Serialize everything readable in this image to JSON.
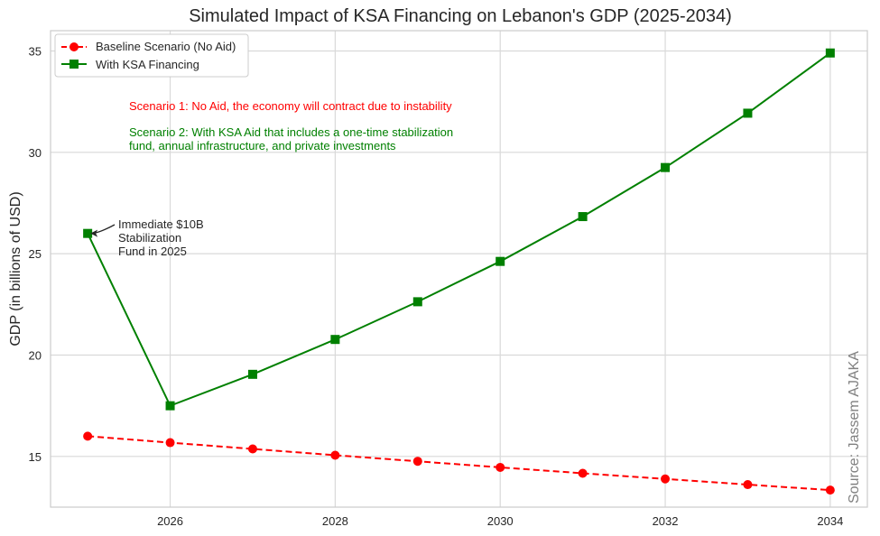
{
  "chart_data": {
    "type": "line",
    "title": "Simulated Impact of KSA Financing on Lebanon's GDP (2025-2034)",
    "xlabel": "",
    "ylabel": "GDP (in billions of USD)",
    "x": [
      2025,
      2026,
      2027,
      2028,
      2029,
      2030,
      2031,
      2032,
      2033,
      2034
    ],
    "xlim": [
      2024.55,
      2034.45
    ],
    "ylim": [
      12.5,
      36.0
    ],
    "x_ticks": [
      2026,
      2028,
      2030,
      2032,
      2034
    ],
    "y_ticks": [
      15,
      20,
      25,
      30,
      35
    ],
    "grid": true,
    "legend_position": "top-left",
    "series": [
      {
        "name": "Baseline Scenario (No Aid)",
        "color": "#ff0000",
        "line_style": "dashed",
        "marker": "circle",
        "values": [
          16.0,
          15.68,
          15.37,
          15.06,
          14.76,
          14.46,
          14.17,
          13.89,
          13.61,
          13.34
        ]
      },
      {
        "name": "With KSA Financing",
        "color": "#008000",
        "line_style": "solid",
        "marker": "square",
        "values": [
          26.0,
          17.5,
          19.05,
          20.77,
          22.63,
          24.62,
          26.83,
          29.25,
          31.93,
          34.9
        ]
      }
    ],
    "annotations": [
      {
        "id": "scenario1",
        "text": "Scenario 1: No Aid, the economy will contract due to instability",
        "color": "#ff0000"
      },
      {
        "id": "scenario2",
        "lines": [
          "Scenario 2: With KSA Aid that includes a one-time stabilization",
          "fund, annual infrastructure, and private investments"
        ],
        "color": "#008000"
      },
      {
        "id": "stabilization",
        "lines": [
          "Immediate $10B",
          "Stabilization",
          "Fund in 2025"
        ],
        "color": "#262626",
        "arrow_to": {
          "x": 2025,
          "y": 26.0
        }
      }
    ],
    "source_note": "Source: Jassem AJAKA"
  }
}
